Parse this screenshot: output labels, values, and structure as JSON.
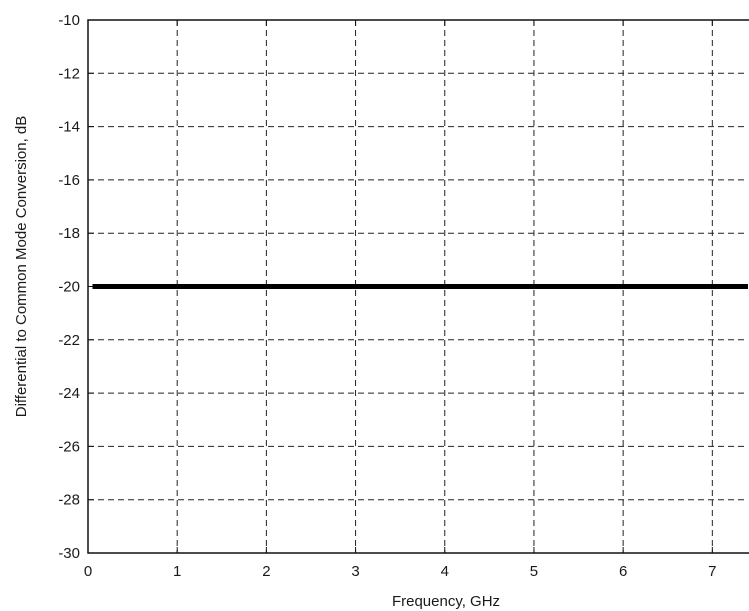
{
  "chart_data": {
    "type": "line",
    "xlabel": "Frequency, GHz",
    "ylabel": "Differential to Common Mode Conversion, dB",
    "xlim": [
      0,
      7.4
    ],
    "ylim": [
      -30,
      -10
    ],
    "xticks": [
      0,
      1,
      2,
      3,
      4,
      5,
      6,
      7
    ],
    "yticks": [
      -10,
      -12,
      -14,
      -16,
      -18,
      -20,
      -22,
      -24,
      -26,
      -28,
      -30
    ],
    "grid": true,
    "series": [
      {
        "x": [
          0.05,
          7.4
        ],
        "y": [
          -20,
          -20
        ],
        "color": "#000000"
      }
    ]
  }
}
